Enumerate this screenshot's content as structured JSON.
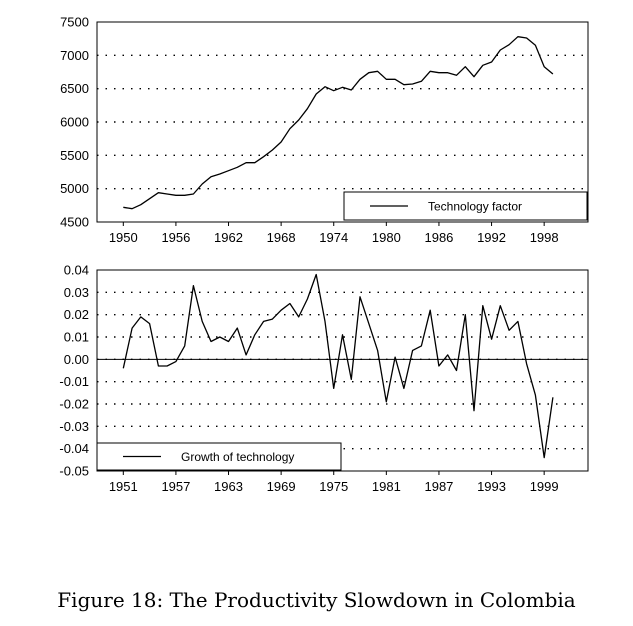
{
  "caption": "Figure 18: The Productivity Slowdown in Colombia",
  "chart_data": [
    {
      "type": "line",
      "title": "",
      "xlabel": "",
      "ylabel": "",
      "ylim": [
        4500,
        7500
      ],
      "yticks": [
        4500,
        5000,
        5500,
        6000,
        6500,
        7000,
        7500
      ],
      "ytick_labels": [
        "4500",
        "5000",
        "5500",
        "6000",
        "6500",
        "7000",
        "7500"
      ],
      "xlim": [
        1947,
        2003
      ],
      "xticks": [
        1950,
        1956,
        1962,
        1968,
        1974,
        1980,
        1986,
        1992,
        1998
      ],
      "xtick_labels": [
        "1950",
        "1956",
        "1962",
        "1968",
        "1974",
        "1980",
        "1986",
        "1992",
        "1998"
      ],
      "grid": "horizontal dotted",
      "legend_position": "bottom-right",
      "series": [
        {
          "name": "Technology factor",
          "x": [
            1950,
            1951,
            1952,
            1953,
            1954,
            1955,
            1956,
            1957,
            1958,
            1959,
            1960,
            1961,
            1962,
            1963,
            1964,
            1965,
            1966,
            1967,
            1968,
            1969,
            1970,
            1971,
            1972,
            1973,
            1974,
            1975,
            1976,
            1977,
            1978,
            1979,
            1980,
            1981,
            1982,
            1983,
            1984,
            1985,
            1986,
            1987,
            1988,
            1989,
            1990,
            1991,
            1992,
            1993,
            1994,
            1995,
            1996,
            1997,
            1998,
            1999
          ],
          "values": [
            4720,
            4700,
            4760,
            4850,
            4940,
            4920,
            4900,
            4900,
            4920,
            5070,
            5180,
            5220,
            5270,
            5320,
            5390,
            5390,
            5480,
            5580,
            5700,
            5900,
            6030,
            6200,
            6420,
            6530,
            6470,
            6520,
            6480,
            6640,
            6740,
            6760,
            6640,
            6640,
            6560,
            6570,
            6610,
            6760,
            6740,
            6740,
            6700,
            6830,
            6680,
            6850,
            6900,
            7080,
            7160,
            7280,
            7260,
            7150,
            6830,
            6720
          ]
        }
      ]
    },
    {
      "type": "line",
      "title": "",
      "xlabel": "",
      "ylabel": "",
      "ylim": [
        -0.05,
        0.04
      ],
      "yticks": [
        -0.05,
        -0.04,
        -0.03,
        -0.02,
        -0.01,
        0.0,
        0.01,
        0.02,
        0.03,
        0.04
      ],
      "ytick_labels": [
        "-0.05",
        "-0.04",
        "-0.03",
        "-0.02",
        "-0.01",
        "0.00",
        "0.01",
        "0.02",
        "0.03",
        "0.04"
      ],
      "xlim": [
        1948,
        2004
      ],
      "xticks": [
        1951,
        1957,
        1963,
        1969,
        1975,
        1981,
        1987,
        1993,
        1999
      ],
      "xtick_labels": [
        "1951",
        "1957",
        "1963",
        "1969",
        "1975",
        "1981",
        "1987",
        "1993",
        "1999"
      ],
      "grid": "horizontal dotted",
      "zero_line": true,
      "legend_position": "bottom-left",
      "series": [
        {
          "name": "Growth of technology",
          "x": [
            1951,
            1952,
            1953,
            1954,
            1955,
            1956,
            1957,
            1958,
            1959,
            1960,
            1961,
            1962,
            1963,
            1964,
            1965,
            1966,
            1967,
            1968,
            1969,
            1970,
            1971,
            1972,
            1973,
            1974,
            1975,
            1976,
            1977,
            1978,
            1979,
            1980,
            1981,
            1982,
            1983,
            1984,
            1985,
            1986,
            1987,
            1988,
            1989,
            1990,
            1991,
            1992,
            1993,
            1994,
            1995,
            1996,
            1997,
            1998,
            1999,
            2000
          ],
          "values": [
            -0.004,
            0.014,
            0.019,
            0.016,
            -0.003,
            -0.003,
            -0.001,
            0.006,
            0.033,
            0.017,
            0.008,
            0.01,
            0.008,
            0.014,
            0.002,
            0.011,
            0.017,
            0.018,
            0.022,
            0.025,
            0.019,
            0.027,
            0.038,
            0.017,
            -0.013,
            0.011,
            -0.009,
            0.028,
            0.016,
            0.004,
            -0.019,
            0.001,
            -0.013,
            0.004,
            0.006,
            0.022,
            -0.003,
            0.002,
            -0.005,
            0.02,
            -0.023,
            0.024,
            0.009,
            0.024,
            0.013,
            0.017,
            -0.002,
            -0.016,
            -0.044,
            -0.017
          ]
        }
      ]
    }
  ]
}
